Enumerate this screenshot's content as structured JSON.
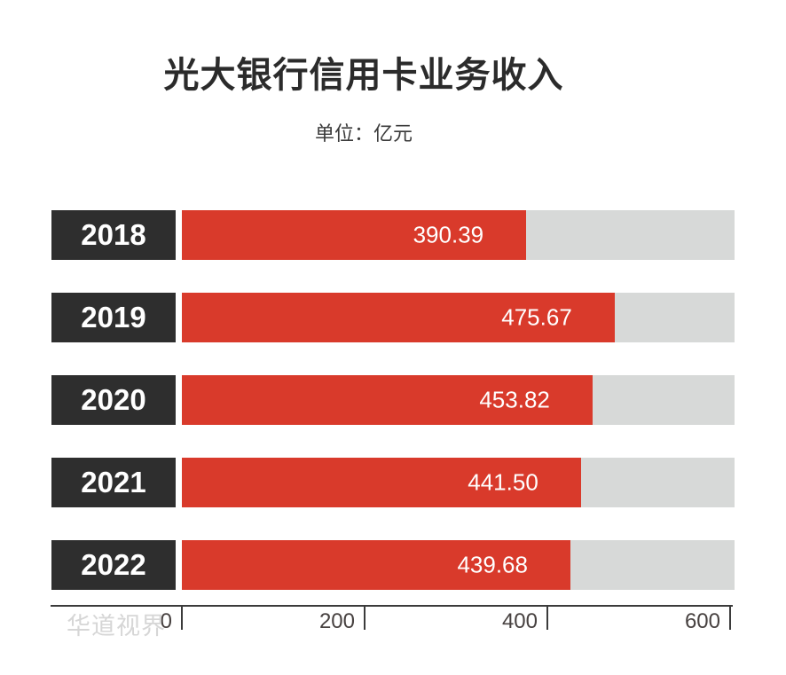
{
  "title": "光大银行信用卡业务收入",
  "subtitle": "单位：亿元",
  "watermark": "华道视界",
  "colors": {
    "bar_fill": "#d93a2b",
    "year_box": "#2e2e2e",
    "track": "#d7d9d8",
    "title_text": "#2b2b2b",
    "axis": "#3b3b3b",
    "watermark": "#d6d6d6"
  },
  "chart_data": {
    "type": "bar",
    "orientation": "horizontal",
    "title": "光大银行信用卡业务收入",
    "unit_label": "单位：亿元",
    "categories": [
      "2018",
      "2019",
      "2020",
      "2021",
      "2022"
    ],
    "values": [
      390.39,
      475.67,
      453.82,
      441.5,
      439.68
    ],
    "display_values": [
      "390.39",
      "475.67",
      "453.82",
      "441.50",
      "439.68"
    ],
    "xlabel": "",
    "ylabel": "",
    "xlim": [
      0,
      600
    ],
    "x_ticks": [
      0,
      200,
      400,
      600
    ],
    "x_tick_labels": [
      "0",
      "200",
      "400",
      "600"
    ],
    "grid": false,
    "legend": false,
    "track_full_fraction": 1.0,
    "bar_track_fractions": [
      0.623,
      0.783,
      0.743,
      0.722,
      0.703
    ]
  }
}
